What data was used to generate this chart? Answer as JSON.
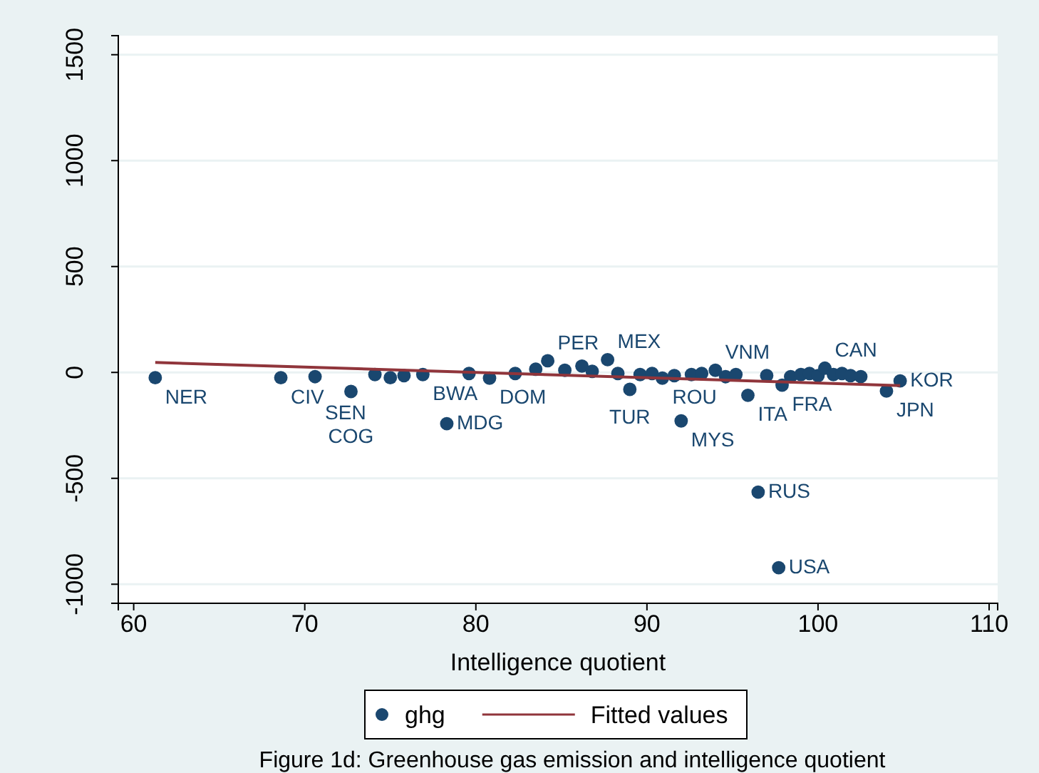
{
  "chart_data": {
    "type": "scatter",
    "title": "Figure 1d: Greenhouse gas emission and intelligence quotient",
    "xlabel": "Intelligence quotient",
    "xlim": [
      59.1,
      110.5
    ],
    "xticks": [
      60,
      70,
      80,
      90,
      100,
      110
    ],
    "ylim": [
      -1090,
      1590
    ],
    "yticks": [
      -1000,
      -500,
      0,
      500,
      1000,
      1500
    ],
    "grid": "y",
    "legend": "bottom",
    "marker": "circle",
    "series": [
      {
        "name": "ghg",
        "type": "scatter",
        "color": "#1a476f",
        "x": [
          61.26,
          68.6,
          70.6,
          72.7,
          74.1,
          75.0,
          75.8,
          76.9,
          78.3,
          79.6,
          80.8,
          82.3,
          83.5,
          84.2,
          85.2,
          86.2,
          86.8,
          87.7,
          88.3,
          89.0,
          89.6,
          90.3,
          90.9,
          91.6,
          92.0,
          92.6,
          93.2,
          94.0,
          94.6,
          95.2,
          95.9,
          96.5,
          97.0,
          97.7,
          97.9,
          98.4,
          99.0,
          99.5,
          100.0,
          100.4,
          100.9,
          101.4,
          101.9,
          102.5,
          104.0,
          104.8
        ],
        "values": [
          -25,
          -25,
          -20,
          -90,
          -10,
          -25,
          -15,
          -10,
          -242,
          -5,
          -27,
          -5,
          15,
          55,
          10,
          30,
          5,
          60,
          -5,
          -80,
          -10,
          -5,
          -27,
          -15,
          -229,
          -10,
          -5,
          10,
          -20,
          -10,
          -108,
          -565,
          -15,
          -922,
          -60,
          -20,
          -10,
          -5,
          -15,
          20,
          -10,
          -5,
          -15,
          -20,
          -88,
          -40
        ],
        "value_labels": [
          "NER",
          "CIV",
          "SEN",
          "COG",
          null,
          null,
          null,
          "BWA",
          "MDG",
          null,
          "DOM",
          null,
          null,
          "PER",
          null,
          null,
          null,
          "MEX",
          null,
          "TUR",
          null,
          null,
          "ROU",
          null,
          "MYS",
          null,
          null,
          "VNM",
          null,
          null,
          "ITA",
          "RUS",
          null,
          "USA",
          "FRA",
          null,
          null,
          null,
          null,
          "CAN",
          null,
          null,
          null,
          null,
          "JPN",
          "KOR"
        ]
      },
      {
        "name": "Fitted values",
        "type": "line",
        "color": "#90353b",
        "marker": "none",
        "x": [
          61.26,
          104.8
        ],
        "values": [
          47,
          -62
        ]
      }
    ]
  }
}
